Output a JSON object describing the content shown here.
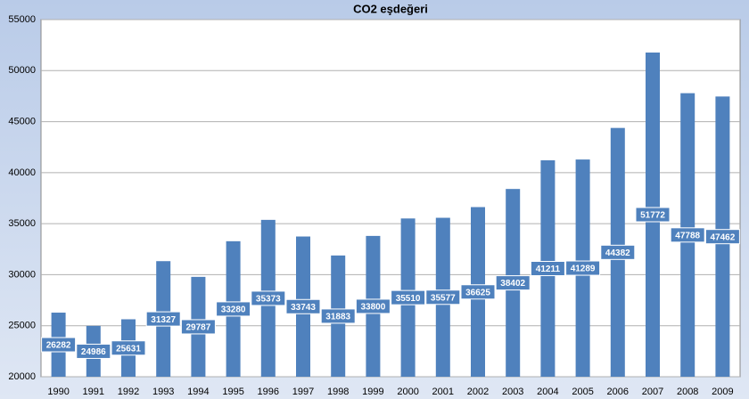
{
  "chart_data": {
    "type": "bar",
    "title": "CO2 eşdeğeri",
    "categories": [
      "1990",
      "1991",
      "1992",
      "1993",
      "1994",
      "1995",
      "1996",
      "1997",
      "1998",
      "1999",
      "2000",
      "2001",
      "2002",
      "2003",
      "2004",
      "2005",
      "2006",
      "2007",
      "2008",
      "2009"
    ],
    "values": [
      26282,
      24986,
      25631,
      31327,
      29787,
      33280,
      35373,
      33743,
      31883,
      33800,
      35510,
      35577,
      36625,
      38402,
      41211,
      41289,
      44382,
      51772,
      47788,
      47462
    ],
    "color": "#4f81bd",
    "ylim": [
      20000,
      55000
    ],
    "yticks": [
      20000,
      25000,
      30000,
      35000,
      40000,
      45000,
      50000,
      55000
    ],
    "grid": true
  }
}
